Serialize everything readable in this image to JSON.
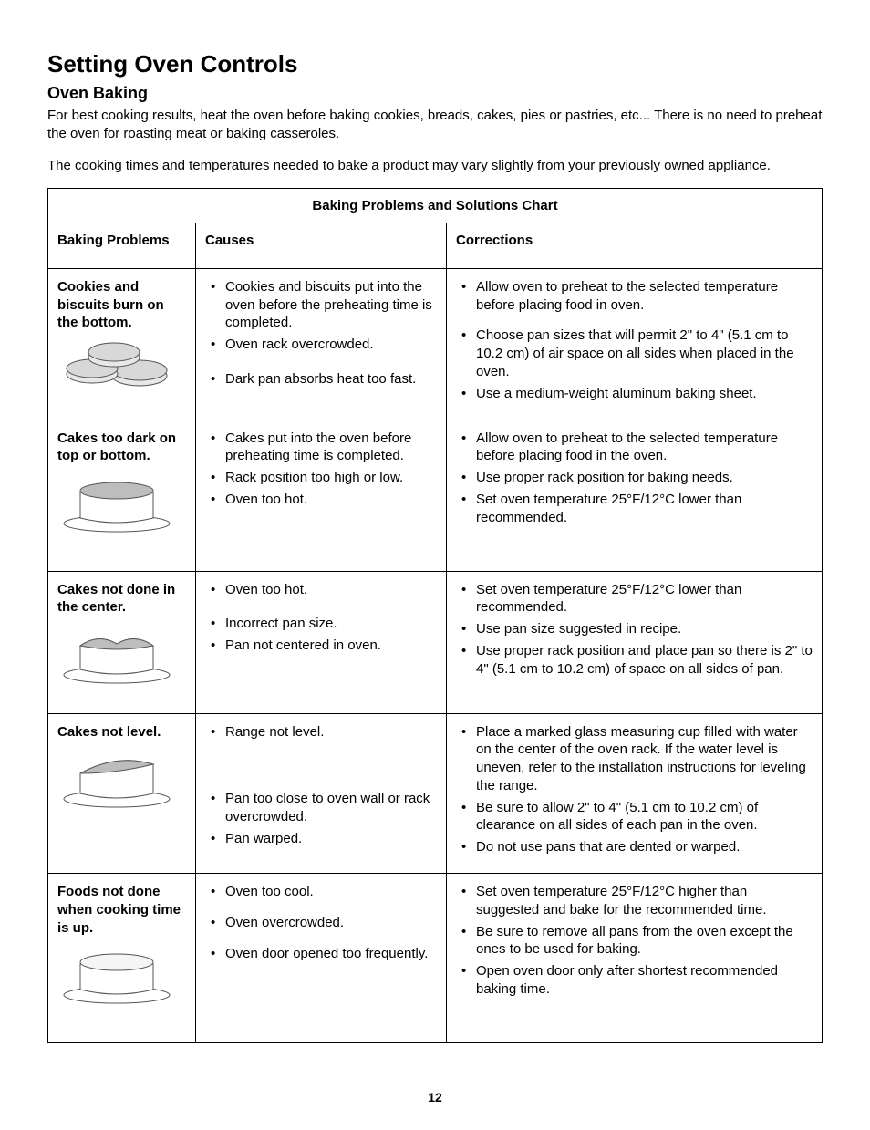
{
  "page": {
    "title": "Setting Oven Controls",
    "subtitle": "Oven Baking",
    "intro1": "For best cooking results, heat the oven before baking cookies, breads, cakes, pies or pastries, etc...  There is no need to preheat the oven for roasting meat or baking casseroles.",
    "intro2": "The cooking times and temperatures needed to bake a product may vary slightly from your previously owned appliance.",
    "page_number": "12"
  },
  "table": {
    "chart_title": "Baking Problems and Solutions Chart",
    "headers": {
      "problems": "Baking Problems",
      "causes": "Causes",
      "corrections": "Corrections"
    },
    "rows": [
      {
        "problem": "Cookies and biscuits burn on the bottom.",
        "icon": "cookies",
        "causes": [
          "Cookies and biscuits put into the oven before the preheating time is completed.",
          "Oven rack overcrowded.",
          "Dark pan absorbs heat too fast."
        ],
        "causes_spaced": false,
        "cause_gap_after": [
          1
        ],
        "corrections": [
          "Allow oven to preheat to the selected temperature before placing food in oven.",
          "Choose pan sizes that will permit 2\" to 4\" (5.1 cm to 10.2 cm) of air space on all sides when placed in the oven.",
          "Use a medium-weight aluminum baking sheet."
        ],
        "corr_gap_after": [
          0
        ]
      },
      {
        "problem": "Cakes too dark on top or bottom.",
        "icon": "cake-dark",
        "causes": [
          "Cakes put into the oven before preheating time is completed.",
          "Rack position too high or low.",
          "Oven too hot."
        ],
        "corrections": [
          "Allow oven to preheat to the selected temperature before placing food in the oven.",
          "Use proper rack position for baking needs.",
          "Set oven temperature 25°F/12°C lower than recommended."
        ],
        "extra_pad": 30
      },
      {
        "problem": "Cakes not done in the center.",
        "icon": "cake-center",
        "causes": [
          "Oven too hot.",
          "Incorrect pan size.",
          "Pan not centered in oven."
        ],
        "cause_gap_after": [
          0
        ],
        "corrections": [
          "Set oven temperature 25°F/12°C lower than recommended.",
          "Use pan size suggested in recipe.",
          "Use proper rack position and place pan so there is 2\" to 4\" (5.1 cm to 10.2 cm) of space on all sides of pan."
        ],
        "extra_pad": 20
      },
      {
        "problem": "Cakes not level.",
        "icon": "cake-unlevel",
        "causes": [
          "Range not level.",
          "Pan too close to oven wall or rack overcrowded.",
          "Pan warped."
        ],
        "cause_gap_after_big": [
          0
        ],
        "corrections": [
          "Place a marked glass measuring cup filled with water on the center of the oven rack.  If the water level is uneven, refer to the installation instructions for leveling the range.",
          "Be sure to allow 2\" to 4\" (5.1 cm to 10.2 cm) of clearance on all sides of each pan in the oven.",
          "Do not use pans that are dented or warped."
        ]
      },
      {
        "problem": "Foods not done when cooking time is up.",
        "icon": "cake-notdone",
        "causes": [
          "Oven too cool.",
          "Oven overcrowded.",
          "Oven door opened too frequently."
        ],
        "causes_spaced": true,
        "corrections": [
          "Set oven temperature 25°F/12°C higher than suggested and bake for the recommended time.",
          "Be sure to remove all pans from the oven except the ones to be used for baking.",
          "Open oven door only after shortest recommended baking time."
        ],
        "extra_pad": 30
      }
    ]
  },
  "colors": {
    "text": "#000000",
    "background": "#ffffff",
    "border": "#000000",
    "icon_shade": "#bdbdbd",
    "icon_line": "#555555"
  }
}
